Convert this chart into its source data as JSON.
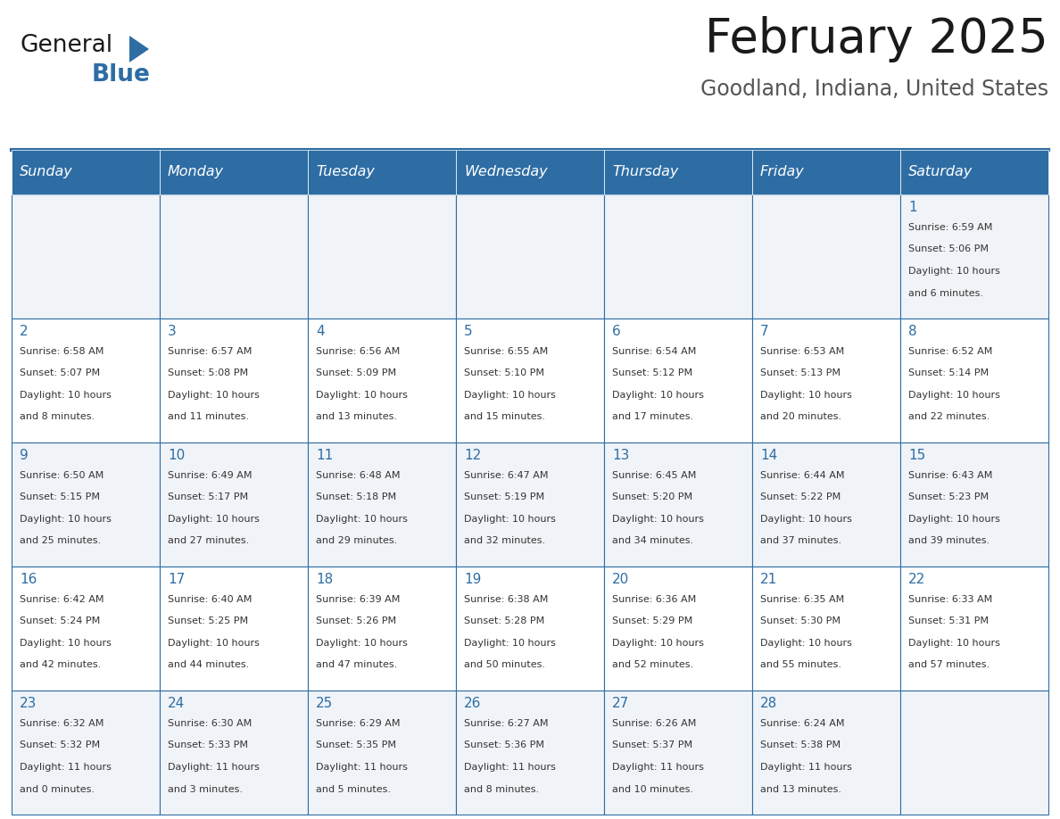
{
  "title": "February 2025",
  "subtitle": "Goodland, Indiana, United States",
  "days_of_week": [
    "Sunday",
    "Monday",
    "Tuesday",
    "Wednesday",
    "Thursday",
    "Friday",
    "Saturday"
  ],
  "header_bg": "#2E6DA4",
  "header_text": "#FFFFFF",
  "cell_bg_odd": "#F0F4F8",
  "cell_bg_even": "#FFFFFF",
  "cell_border": "#2E6DA4",
  "day_num_color": "#2E6DA4",
  "text_color": "#333333",
  "title_color": "#1A1A1A",
  "subtitle_color": "#555555",
  "logo_general_color": "#1A1A1A",
  "logo_blue_color": "#2E6DA4",
  "calendar_data": [
    [
      null,
      null,
      null,
      null,
      null,
      null,
      {
        "day": 1,
        "sunrise": "6:59 AM",
        "sunset": "5:06 PM",
        "daylight_line1": "Daylight: 10 hours",
        "daylight_line2": "and 6 minutes."
      }
    ],
    [
      {
        "day": 2,
        "sunrise": "6:58 AM",
        "sunset": "5:07 PM",
        "daylight_line1": "Daylight: 10 hours",
        "daylight_line2": "and 8 minutes."
      },
      {
        "day": 3,
        "sunrise": "6:57 AM",
        "sunset": "5:08 PM",
        "daylight_line1": "Daylight: 10 hours",
        "daylight_line2": "and 11 minutes."
      },
      {
        "day": 4,
        "sunrise": "6:56 AM",
        "sunset": "5:09 PM",
        "daylight_line1": "Daylight: 10 hours",
        "daylight_line2": "and 13 minutes."
      },
      {
        "day": 5,
        "sunrise": "6:55 AM",
        "sunset": "5:10 PM",
        "daylight_line1": "Daylight: 10 hours",
        "daylight_line2": "and 15 minutes."
      },
      {
        "day": 6,
        "sunrise": "6:54 AM",
        "sunset": "5:12 PM",
        "daylight_line1": "Daylight: 10 hours",
        "daylight_line2": "and 17 minutes."
      },
      {
        "day": 7,
        "sunrise": "6:53 AM",
        "sunset": "5:13 PM",
        "daylight_line1": "Daylight: 10 hours",
        "daylight_line2": "and 20 minutes."
      },
      {
        "day": 8,
        "sunrise": "6:52 AM",
        "sunset": "5:14 PM",
        "daylight_line1": "Daylight: 10 hours",
        "daylight_line2": "and 22 minutes."
      }
    ],
    [
      {
        "day": 9,
        "sunrise": "6:50 AM",
        "sunset": "5:15 PM",
        "daylight_line1": "Daylight: 10 hours",
        "daylight_line2": "and 25 minutes."
      },
      {
        "day": 10,
        "sunrise": "6:49 AM",
        "sunset": "5:17 PM",
        "daylight_line1": "Daylight: 10 hours",
        "daylight_line2": "and 27 minutes."
      },
      {
        "day": 11,
        "sunrise": "6:48 AM",
        "sunset": "5:18 PM",
        "daylight_line1": "Daylight: 10 hours",
        "daylight_line2": "and 29 minutes."
      },
      {
        "day": 12,
        "sunrise": "6:47 AM",
        "sunset": "5:19 PM",
        "daylight_line1": "Daylight: 10 hours",
        "daylight_line2": "and 32 minutes."
      },
      {
        "day": 13,
        "sunrise": "6:45 AM",
        "sunset": "5:20 PM",
        "daylight_line1": "Daylight: 10 hours",
        "daylight_line2": "and 34 minutes."
      },
      {
        "day": 14,
        "sunrise": "6:44 AM",
        "sunset": "5:22 PM",
        "daylight_line1": "Daylight: 10 hours",
        "daylight_line2": "and 37 minutes."
      },
      {
        "day": 15,
        "sunrise": "6:43 AM",
        "sunset": "5:23 PM",
        "daylight_line1": "Daylight: 10 hours",
        "daylight_line2": "and 39 minutes."
      }
    ],
    [
      {
        "day": 16,
        "sunrise": "6:42 AM",
        "sunset": "5:24 PM",
        "daylight_line1": "Daylight: 10 hours",
        "daylight_line2": "and 42 minutes."
      },
      {
        "day": 17,
        "sunrise": "6:40 AM",
        "sunset": "5:25 PM",
        "daylight_line1": "Daylight: 10 hours",
        "daylight_line2": "and 44 minutes."
      },
      {
        "day": 18,
        "sunrise": "6:39 AM",
        "sunset": "5:26 PM",
        "daylight_line1": "Daylight: 10 hours",
        "daylight_line2": "and 47 minutes."
      },
      {
        "day": 19,
        "sunrise": "6:38 AM",
        "sunset": "5:28 PM",
        "daylight_line1": "Daylight: 10 hours",
        "daylight_line2": "and 50 minutes."
      },
      {
        "day": 20,
        "sunrise": "6:36 AM",
        "sunset": "5:29 PM",
        "daylight_line1": "Daylight: 10 hours",
        "daylight_line2": "and 52 minutes."
      },
      {
        "day": 21,
        "sunrise": "6:35 AM",
        "sunset": "5:30 PM",
        "daylight_line1": "Daylight: 10 hours",
        "daylight_line2": "and 55 minutes."
      },
      {
        "day": 22,
        "sunrise": "6:33 AM",
        "sunset": "5:31 PM",
        "daylight_line1": "Daylight: 10 hours",
        "daylight_line2": "and 57 minutes."
      }
    ],
    [
      {
        "day": 23,
        "sunrise": "6:32 AM",
        "sunset": "5:32 PM",
        "daylight_line1": "Daylight: 11 hours",
        "daylight_line2": "and 0 minutes."
      },
      {
        "day": 24,
        "sunrise": "6:30 AM",
        "sunset": "5:33 PM",
        "daylight_line1": "Daylight: 11 hours",
        "daylight_line2": "and 3 minutes."
      },
      {
        "day": 25,
        "sunrise": "6:29 AM",
        "sunset": "5:35 PM",
        "daylight_line1": "Daylight: 11 hours",
        "daylight_line2": "and 5 minutes."
      },
      {
        "day": 26,
        "sunrise": "6:27 AM",
        "sunset": "5:36 PM",
        "daylight_line1": "Daylight: 11 hours",
        "daylight_line2": "and 8 minutes."
      },
      {
        "day": 27,
        "sunrise": "6:26 AM",
        "sunset": "5:37 PM",
        "daylight_line1": "Daylight: 11 hours",
        "daylight_line2": "and 10 minutes."
      },
      {
        "day": 28,
        "sunrise": "6:24 AM",
        "sunset": "5:38 PM",
        "daylight_line1": "Daylight: 11 hours",
        "daylight_line2": "and 13 minutes."
      },
      null
    ]
  ]
}
